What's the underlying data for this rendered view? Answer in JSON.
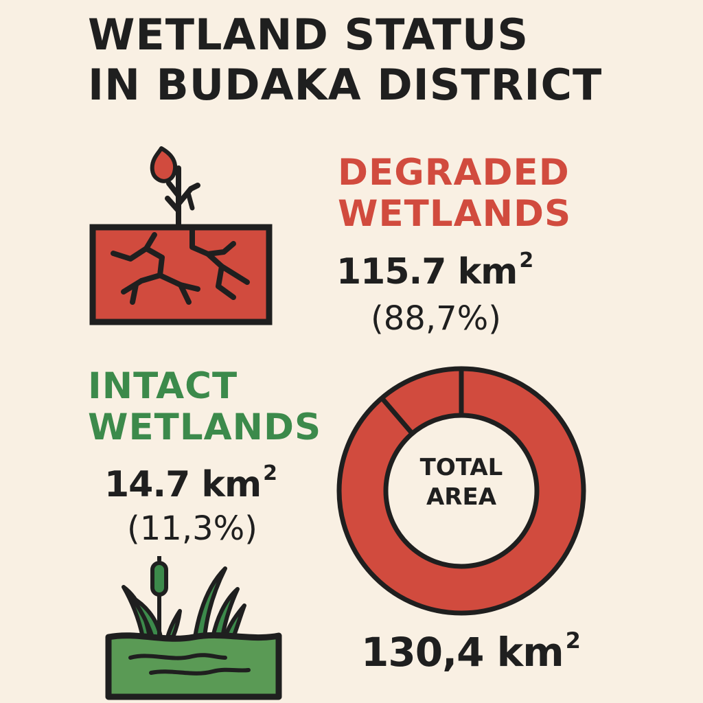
{
  "title": {
    "line1": "WETLAND STATUS",
    "line2": "IN BUDAKA DISTRICT"
  },
  "colors": {
    "background": "#f9f0e3",
    "degraded": "#d14b3e",
    "intact": "#3c8a4b",
    "text": "#1f1f1f"
  },
  "degraded": {
    "label_line1": "DEGRADED",
    "label_line2": "WETLANDS",
    "area": "115.7 km",
    "area_unit_sup": "2",
    "percent": "(88,7%)",
    "icon": "cracked-soil-sprout-icon"
  },
  "intact": {
    "label_line1": "INTACT",
    "label_line2": "WETLANDS",
    "area": "14.7 km",
    "area_unit_sup": "2",
    "percent": "(11,3%)",
    "icon": "cattail-marsh-water-icon"
  },
  "total": {
    "center_line1": "TOTAL",
    "center_line2": "AREA",
    "value": "130,4 km",
    "unit_sup": "2"
  },
  "chart_data": {
    "type": "pie",
    "title": "WETLAND STATUS IN BUDAKA DISTRICT",
    "categories": [
      "DEGRADED WETLANDS",
      "INTACT WETLANDS"
    ],
    "values": [
      115.7,
      14.7
    ],
    "percentages": [
      88.7,
      11.3
    ],
    "unit": "km²",
    "total": 130.4
  }
}
